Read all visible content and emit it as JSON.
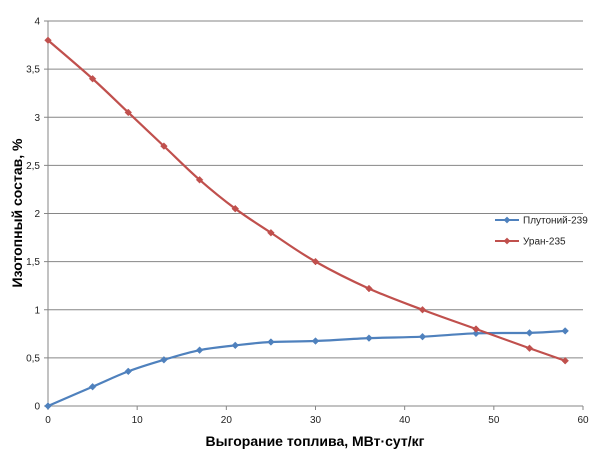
{
  "chart_data": {
    "type": "line",
    "xlabel": "Выгорание топлива, МВт·сут/кг",
    "ylabel": "Изотопный состав, %",
    "xlim": [
      0,
      60
    ],
    "ylim": [
      0,
      4
    ],
    "x_ticks": [
      0,
      10,
      20,
      30,
      40,
      50,
      60
    ],
    "x_tick_labels": [
      "0",
      "10",
      "20",
      "30",
      "40",
      "50",
      "60"
    ],
    "y_ticks": [
      0,
      0.5,
      1,
      1.5,
      2,
      2.5,
      3,
      3.5,
      4
    ],
    "y_tick_labels": [
      "0",
      "0,5",
      "1",
      "1,5",
      "2",
      "2,5",
      "3",
      "3,5",
      "4"
    ],
    "grid": "horizontal",
    "legend_position": "right",
    "series": [
      {
        "name": "Плутоний-239",
        "color": "#4f81bd",
        "x": [
          0,
          5,
          9,
          13,
          17,
          21,
          25,
          30,
          36,
          42,
          48,
          54,
          58
        ],
        "y": [
          0,
          0.2,
          0.36,
          0.48,
          0.58,
          0.63,
          0.665,
          0.675,
          0.705,
          0.72,
          0.755,
          0.76,
          0.78
        ]
      },
      {
        "name": "Уран-235",
        "color": "#c0504d",
        "x": [
          0,
          5,
          9,
          13,
          17,
          21,
          25,
          30,
          36,
          42,
          48,
          54,
          58
        ],
        "y": [
          3.8,
          3.4,
          3.05,
          2.7,
          2.35,
          2.05,
          1.8,
          1.5,
          1.22,
          1.0,
          0.8,
          0.6,
          0.47
        ]
      }
    ]
  }
}
